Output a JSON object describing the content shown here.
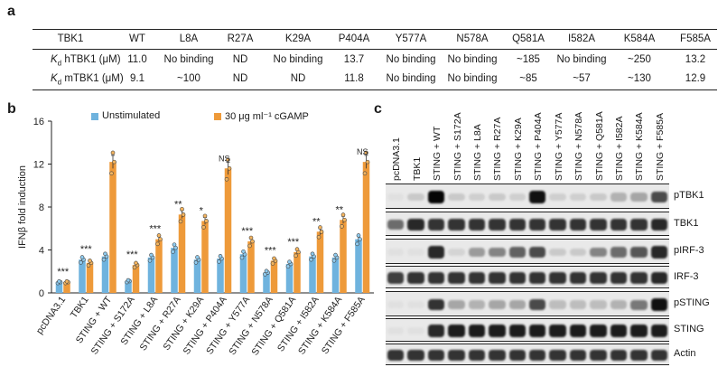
{
  "panel_a": {
    "letter": "a",
    "headers": [
      "TBK1",
      "WT",
      "L8A",
      "R27A",
      "K29A",
      "P404A",
      "Y577A",
      "N578A",
      "Q581A",
      "I582A",
      "K584A",
      "F585A"
    ],
    "row1_label_sub": "d",
    "row1_label_rest": " hTBK1 (μM)",
    "row2_label_rest": " mTBK1 (μM)",
    "row1": [
      "11.0",
      "No binding",
      "ND",
      "No binding",
      "13.7",
      "No binding",
      "No binding",
      "~185",
      "No binding",
      "~250",
      "13.2"
    ],
    "row2": [
      "9.1",
      "~100",
      "ND",
      "ND",
      "11.8",
      "No binding",
      "No binding",
      "~85",
      "~57",
      "~130",
      "12.9"
    ],
    "K": "K"
  },
  "panel_b": {
    "letter": "b",
    "legend_unstim": "Unstimulated",
    "legend_cgamp": "30 μg ml⁻¹ cGAMP",
    "colors": {
      "unstim": "#6fb3de",
      "cgamp": "#ee9a3a",
      "unstim_dot": "#8fcbef",
      "cgamp_dot": "#f4b45e"
    }
  },
  "chart_data": {
    "type": "bar",
    "ylabel": "IFNβ fold induction",
    "ylim": [
      0,
      16
    ],
    "yticks": [
      0,
      4,
      8,
      12,
      16
    ],
    "categories": [
      "pcDNA3.1",
      "TBK1",
      "STING + WT",
      "STING + S172A",
      "STING + L8A",
      "STING + R27A",
      "STING + K29A",
      "STING + P404A",
      "STING + Y577A",
      "STING + N578A",
      "STING + Q581A",
      "STING + I582A",
      "STING + K584A",
      "STING + F585A"
    ],
    "series": [
      {
        "name": "Unstimulated",
        "values": [
          1.0,
          3.1,
          3.4,
          1.1,
          3.3,
          4.2,
          3.1,
          3.2,
          3.6,
          1.9,
          2.7,
          3.4,
          3.3,
          5.0
        ]
      },
      {
        "name": "30 μg ml⁻¹ cGAMP",
        "values": [
          1.0,
          2.8,
          12.2,
          2.6,
          5.0,
          7.3,
          6.7,
          11.6,
          4.8,
          3.0,
          3.8,
          5.7,
          6.8,
          12.2
        ]
      }
    ],
    "significance": [
      "***",
      "***",
      "",
      "***",
      "***",
      "**",
      "*",
      "NS",
      "***",
      "***",
      "***",
      "**",
      "**",
      "NS"
    ]
  },
  "panel_c": {
    "letter": "c",
    "lanes": [
      "pcDNA3.1",
      "TBK1",
      "STING + WT",
      "STING + S172A",
      "STING + L8A",
      "STING + R27A",
      "STING + K29A",
      "STING + P404A",
      "STING + Y577A",
      "STING + N578A",
      "STING + Q581A",
      "STING + I582A",
      "STING + K584A",
      "STING + F585A"
    ],
    "proteins": [
      "pTBK1",
      "TBK1",
      "pIRF-3",
      "IRF-3",
      "pSTING",
      "STING",
      "Actin"
    ],
    "intensities": [
      [
        0.05,
        0.15,
        1.0,
        0.15,
        0.12,
        0.15,
        0.12,
        0.95,
        0.12,
        0.12,
        0.15,
        0.25,
        0.3,
        0.7
      ],
      [
        0.55,
        0.85,
        0.8,
        0.8,
        0.8,
        0.8,
        0.8,
        0.8,
        0.8,
        0.8,
        0.8,
        0.8,
        0.8,
        0.85
      ],
      [
        0.05,
        0.05,
        0.85,
        0.1,
        0.35,
        0.45,
        0.6,
        0.7,
        0.15,
        0.15,
        0.45,
        0.55,
        0.65,
        0.85
      ],
      [
        0.75,
        0.8,
        0.8,
        0.8,
        0.8,
        0.8,
        0.8,
        0.8,
        0.8,
        0.8,
        0.8,
        0.8,
        0.8,
        0.85
      ],
      [
        0.05,
        0.05,
        0.8,
        0.3,
        0.25,
        0.3,
        0.3,
        0.7,
        0.2,
        0.2,
        0.2,
        0.25,
        0.5,
        0.95
      ],
      [
        0.05,
        0.05,
        0.85,
        0.9,
        0.9,
        0.9,
        0.9,
        0.9,
        0.9,
        0.9,
        0.9,
        0.9,
        0.9,
        0.9
      ],
      [
        0.8,
        0.8,
        0.8,
        0.8,
        0.8,
        0.8,
        0.8,
        0.8,
        0.8,
        0.8,
        0.8,
        0.8,
        0.8,
        0.8
      ]
    ]
  }
}
